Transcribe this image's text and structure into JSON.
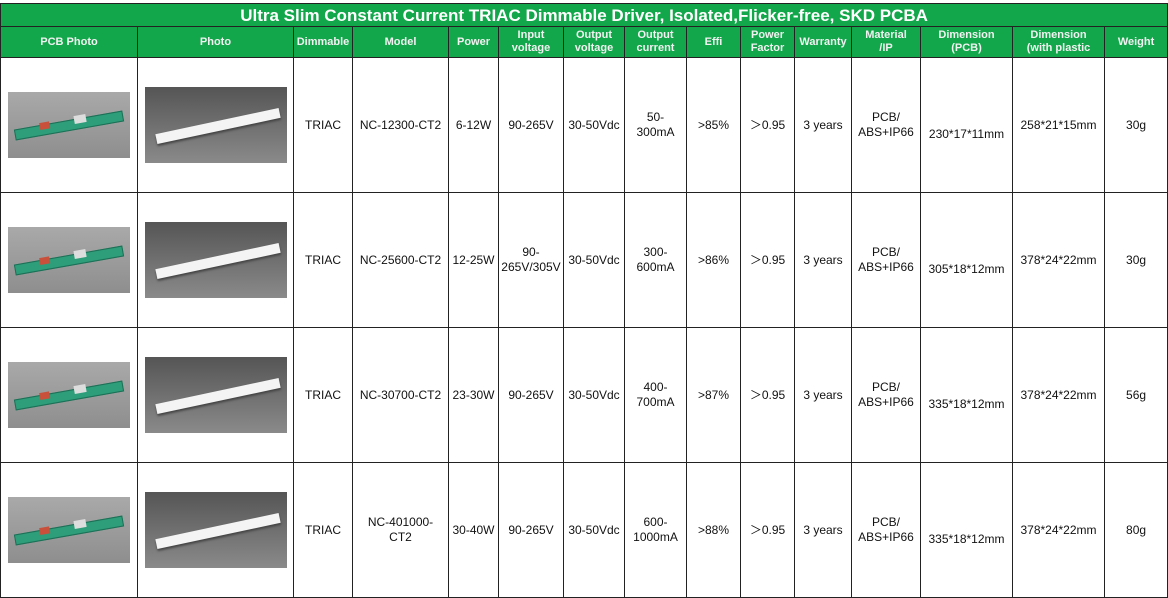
{
  "title": "Ultra Slim Constant Current TRIAC Dimmable Driver, Isolated,Flicker-free, SKD  PCBA",
  "headers": [
    [
      "PCB Photo",
      ""
    ],
    [
      "Photo",
      ""
    ],
    [
      "Dimmable",
      ""
    ],
    [
      "Model",
      ""
    ],
    [
      "Power",
      ""
    ],
    [
      "Input",
      "voltage"
    ],
    [
      "Output",
      "voltage"
    ],
    [
      "Output",
      "current"
    ],
    [
      "Effi",
      ""
    ],
    [
      "Power",
      "Factor"
    ],
    [
      "Warranty",
      ""
    ],
    [
      "Material",
      "/IP"
    ],
    [
      "Dimension",
      "(PCB)"
    ],
    [
      "Dimension",
      "(with plastic"
    ],
    [
      "Weight",
      ""
    ]
  ],
  "rows": [
    {
      "dimmable": "TRIAC",
      "model": [
        "NC-12300-CT2",
        ""
      ],
      "power": "6-12W",
      "input": [
        "90-265V",
        ""
      ],
      "output_v": "30-50Vdc",
      "output_c": [
        "50-",
        "300mA"
      ],
      "effi": ">85%",
      "pf": "＞0.95",
      "warranty": "3 years",
      "material": [
        "PCB/",
        "ABS+IP66"
      ],
      "dim_pcb": "230*17*11mm",
      "dim_plastic": "258*21*15mm",
      "weight": "30g"
    },
    {
      "dimmable": "TRIAC",
      "model": [
        "NC-25600-CT2",
        ""
      ],
      "power": "12-25W",
      "input": [
        "90-",
        "265V/305V"
      ],
      "output_v": "30-50Vdc",
      "output_c": [
        "300-",
        "600mA"
      ],
      "effi": ">86%",
      "pf": "＞0.95",
      "warranty": "3 years",
      "material": [
        "PCB/",
        "ABS+IP66"
      ],
      "dim_pcb": "305*18*12mm",
      "dim_plastic": "378*24*22mm",
      "weight": "30g"
    },
    {
      "dimmable": "TRIAC",
      "model": [
        "NC-30700-CT2",
        ""
      ],
      "power": "23-30W",
      "input": [
        "90-265V",
        ""
      ],
      "output_v": "30-50Vdc",
      "output_c": [
        "400-",
        "700mA"
      ],
      "effi": ">87%",
      "pf": "＞0.95",
      "warranty": "3 years",
      "material": [
        "PCB/",
        "ABS+IP66"
      ],
      "dim_pcb": "335*18*12mm",
      "dim_plastic": "378*24*22mm",
      "weight": "56g"
    },
    {
      "dimmable": "TRIAC",
      "model": [
        "NC-401000-",
        "CT2"
      ],
      "power": "30-40W",
      "input": [
        "90-265V",
        ""
      ],
      "output_v": "30-50Vdc",
      "output_c": [
        "600-",
        "1000mA"
      ],
      "effi": ">88%",
      "pf": "＞0.95",
      "warranty": "3 years",
      "material": [
        "PCB/",
        "ABS+IP66"
      ],
      "dim_pcb": "335*18*12mm",
      "dim_plastic": "378*24*22mm",
      "weight": "80g"
    }
  ]
}
